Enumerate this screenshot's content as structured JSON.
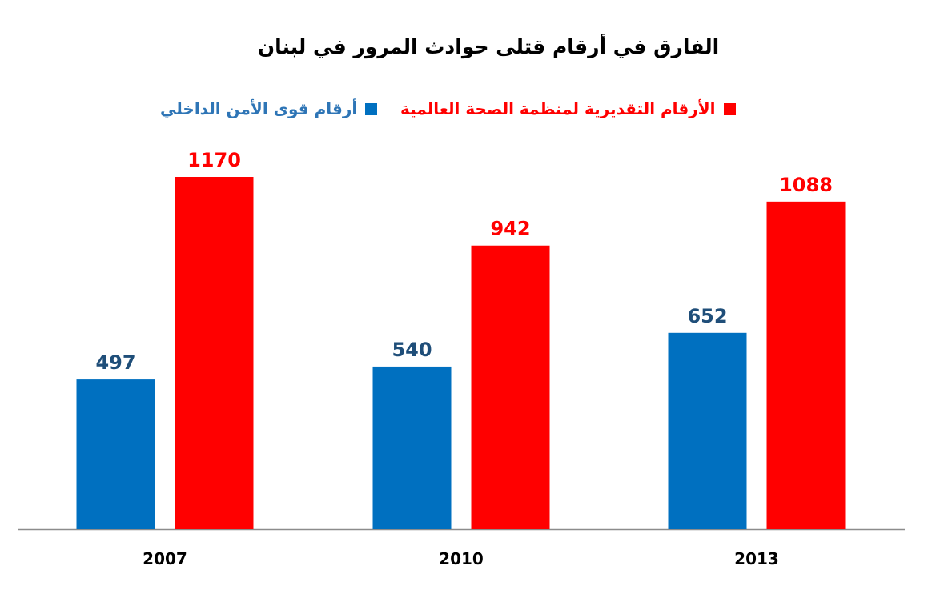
{
  "chart_data": {
    "type": "bar",
    "title": "الفارق في أرقام قتلى حوادث المرور في لبنان",
    "categories": [
      "2007",
      "2010",
      "2013"
    ],
    "series": [
      {
        "name": "أرقام قوى الأمن الداخلي",
        "values": [
          497,
          540,
          652
        ],
        "color": "#0070C0",
        "label_color": "#1F4E79"
      },
      {
        "name": "الأرقام التقديرية لمنظمة الصحة العالمية",
        "values": [
          1170,
          942,
          1088
        ],
        "color": "#FF0000",
        "label_color": "#FF0000"
      }
    ],
    "ylim": [
      0,
      1170
    ],
    "legend_position": "top",
    "grid": false,
    "xlabel": "",
    "ylabel": ""
  }
}
